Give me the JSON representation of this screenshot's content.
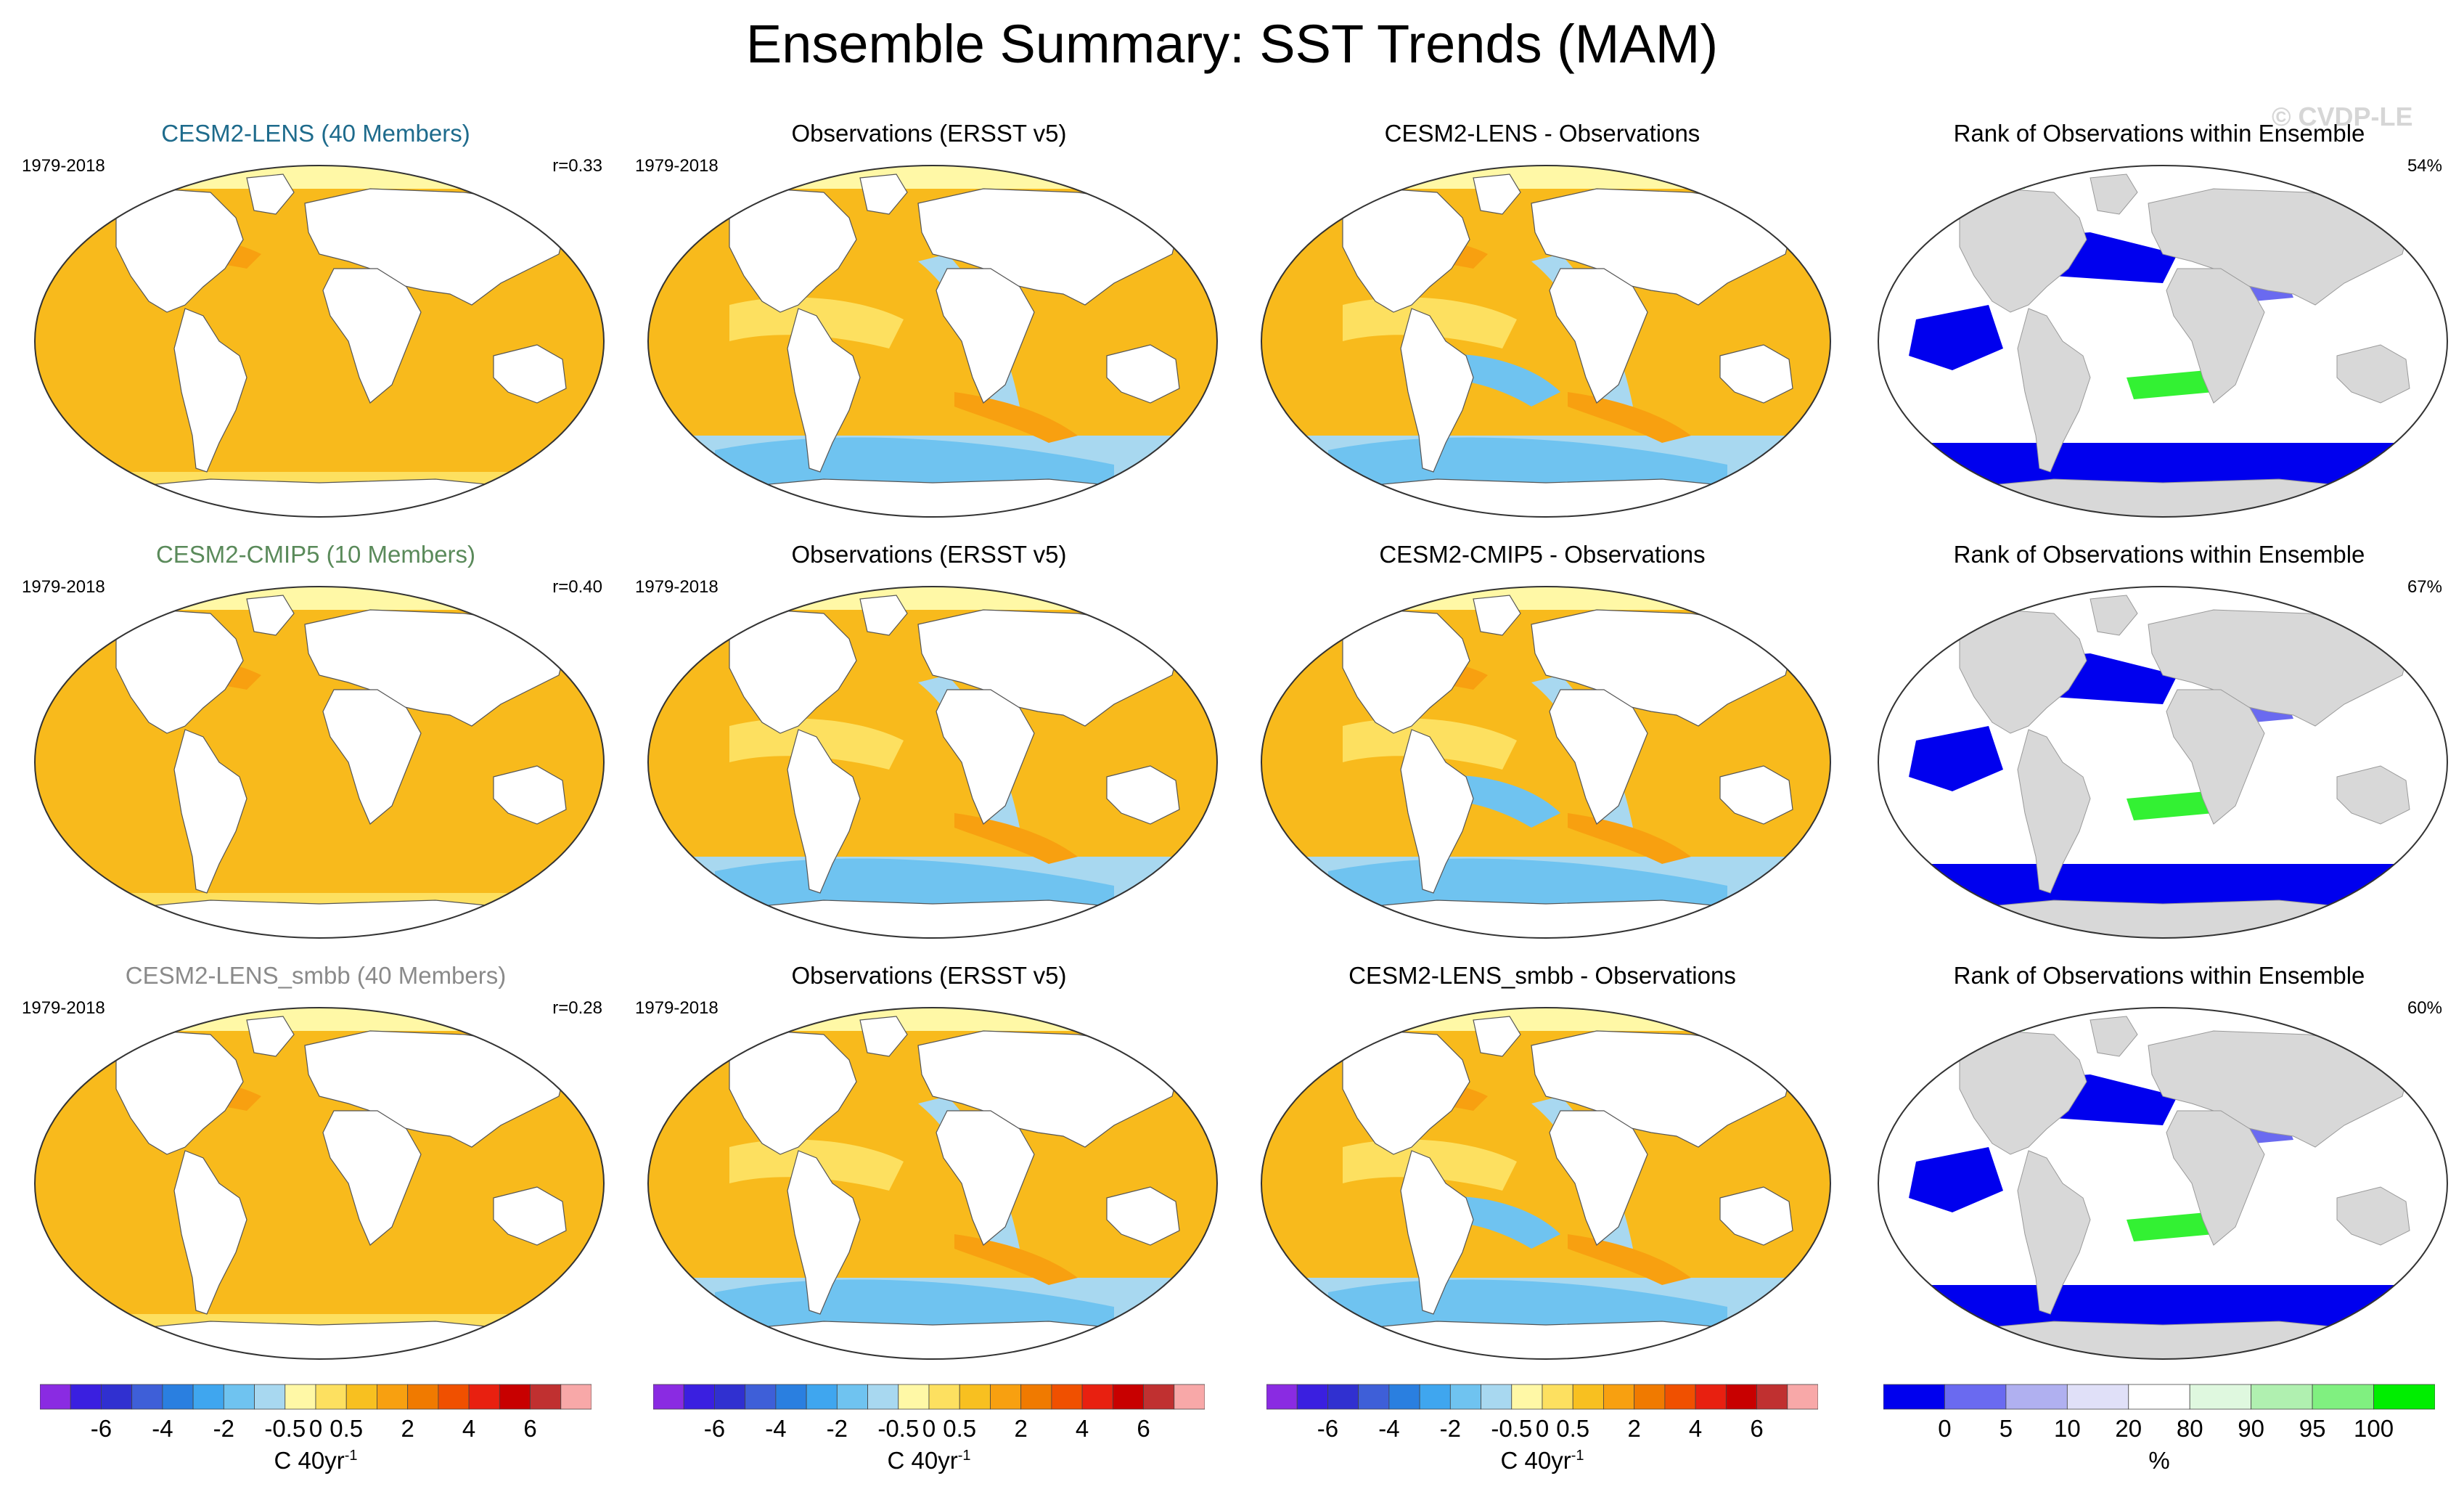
{
  "figure": {
    "title": "Ensemble Summary: SST Trends (MAM)",
    "watermark": "© CVDP-LE"
  },
  "rows": [
    {
      "model": {
        "title": "CESM2-LENS (40 Members)",
        "title_color": "#1e6b8c",
        "years": "1979-2018",
        "corr": "r=0.33"
      },
      "obs": {
        "title": "Observations (ERSST v5)",
        "years": "1979-2018"
      },
      "diff": {
        "title": "CESM2-LENS - Observations"
      },
      "rank": {
        "title": "Rank of Observations within Ensemble",
        "pct": "54%"
      }
    },
    {
      "model": {
        "title": "CESM2-CMIP5 (10 Members)",
        "title_color": "#5a8a5a",
        "years": "1979-2018",
        "corr": "r=0.40"
      },
      "obs": {
        "title": "Observations (ERSST v5)",
        "years": "1979-2018"
      },
      "diff": {
        "title": "CESM2-CMIP5 - Observations"
      },
      "rank": {
        "title": "Rank of Observations within Ensemble",
        "pct": "67%"
      }
    },
    {
      "model": {
        "title": "CESM2-LENS_smbb (40 Members)",
        "title_color": "#8a8a8a",
        "years": "1979-2018",
        "corr": "r=0.28"
      },
      "obs": {
        "title": "Observations (ERSST v5)",
        "years": "1979-2018"
      },
      "diff": {
        "title": "CESM2-LENS_smbb - Observations"
      },
      "rank": {
        "title": "Rank of Observations within Ensemble",
        "pct": "60%"
      }
    }
  ],
  "colorbars": {
    "trend": {
      "ticks": [
        "-6",
        "-4",
        "-2",
        "-0.5",
        "0",
        "0.5",
        "2",
        "4",
        "6"
      ],
      "unit": "C 40yr",
      "unit_sup": "-1",
      "colors": [
        "#8a2be2",
        "#3a1fe0",
        "#3030d0",
        "#3e5fd8",
        "#2a7fe0",
        "#3fa6ef",
        "#6fc3f0",
        "#a8d8f0",
        "#fff8a6",
        "#fde060",
        "#f8c020",
        "#f8a010",
        "#f07a00",
        "#f05000",
        "#e82010",
        "#c80000",
        "#c03030",
        "#f8a8a8"
      ]
    },
    "rank": {
      "ticks": [
        "0",
        "5",
        "10",
        "20",
        "80",
        "90",
        "95",
        "100"
      ],
      "unit": "%",
      "colors": [
        "#0000ee",
        "#6a6af0",
        "#b0b0f0",
        "#e0e0f8",
        "#ffffff",
        "#dff8df",
        "#b0f0b0",
        "#80f080",
        "#00ee00"
      ]
    }
  }
}
